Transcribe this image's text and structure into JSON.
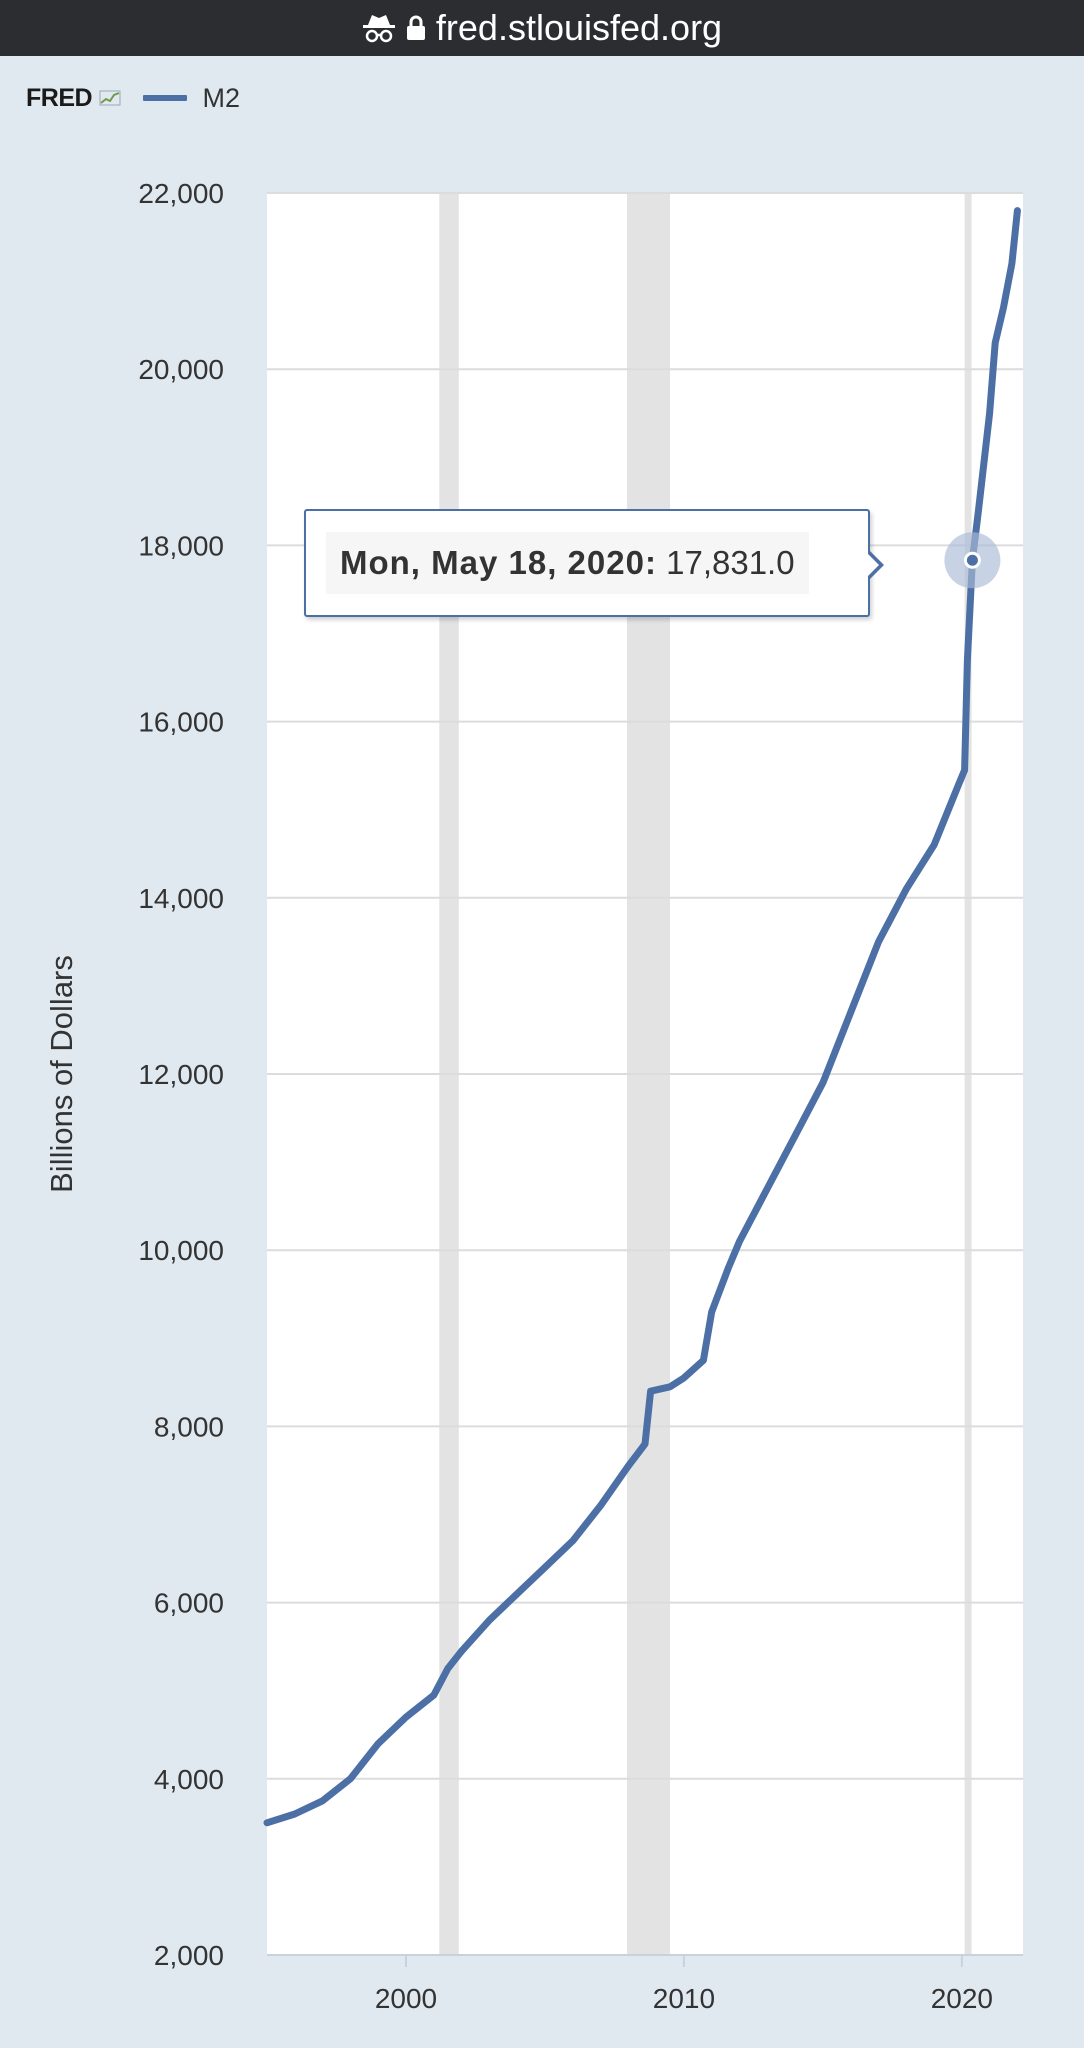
{
  "browser": {
    "url": "fred.stlouisfed.org",
    "icons": [
      "incognito-icon",
      "lock-icon"
    ]
  },
  "header": {
    "logo_text": "FRED",
    "legend_label": "M2",
    "series_color": "#4c6fa6"
  },
  "tooltip": {
    "date": "Mon, May 18, 2020:",
    "value": "17,831.0"
  },
  "chart_data": {
    "type": "line",
    "title": "",
    "ylabel": "Billions of Dollars",
    "xlabel": "",
    "xlim": [
      1995.0,
      2022.2
    ],
    "ylim": [
      2000,
      22000
    ],
    "x_ticks": [
      2000,
      2010,
      2020
    ],
    "x_tick_labels": [
      "2000",
      "2010",
      "2020"
    ],
    "y_ticks": [
      2000,
      4000,
      6000,
      8000,
      10000,
      12000,
      14000,
      16000,
      18000,
      20000,
      22000
    ],
    "y_tick_labels": [
      "2,000",
      "4,000",
      "6,000",
      "8,000",
      "10,000",
      "12,000",
      "14,000",
      "16,000",
      "18,000",
      "20,000",
      "22,000"
    ],
    "grid": true,
    "recessions": [
      [
        2001.2,
        2001.9
      ],
      [
        2007.95,
        2009.5
      ],
      [
        2020.1,
        2020.35
      ]
    ],
    "series": [
      {
        "name": "M2",
        "color": "#4c6fa6",
        "points": [
          [
            1995.0,
            3500
          ],
          [
            1996.0,
            3600
          ],
          [
            1997.0,
            3750
          ],
          [
            1998.0,
            4000
          ],
          [
            1999.0,
            4400
          ],
          [
            2000.0,
            4700
          ],
          [
            2001.0,
            4950
          ],
          [
            2001.5,
            5250
          ],
          [
            2002.0,
            5450
          ],
          [
            2003.0,
            5800
          ],
          [
            2004.0,
            6100
          ],
          [
            2005.0,
            6400
          ],
          [
            2006.0,
            6700
          ],
          [
            2007.0,
            7100
          ],
          [
            2008.0,
            7550
          ],
          [
            2008.6,
            7800
          ],
          [
            2008.8,
            8400
          ],
          [
            2009.5,
            8450
          ],
          [
            2010.0,
            8550
          ],
          [
            2010.7,
            8750
          ],
          [
            2011.0,
            9300
          ],
          [
            2011.6,
            9800
          ],
          [
            2012.0,
            10100
          ],
          [
            2013.0,
            10700
          ],
          [
            2014.0,
            11300
          ],
          [
            2015.0,
            11900
          ],
          [
            2016.0,
            12700
          ],
          [
            2017.0,
            13500
          ],
          [
            2018.0,
            14100
          ],
          [
            2019.0,
            14600
          ],
          [
            2019.9,
            15300
          ],
          [
            2020.1,
            15450
          ],
          [
            2020.2,
            16700
          ],
          [
            2020.38,
            17831
          ],
          [
            2020.6,
            18400
          ],
          [
            2021.0,
            19500
          ],
          [
            2021.2,
            20300
          ],
          [
            2021.5,
            20700
          ],
          [
            2021.8,
            21200
          ],
          [
            2022.0,
            21800
          ]
        ]
      }
    ],
    "highlight": {
      "x": 2020.38,
      "y": 17831
    }
  }
}
